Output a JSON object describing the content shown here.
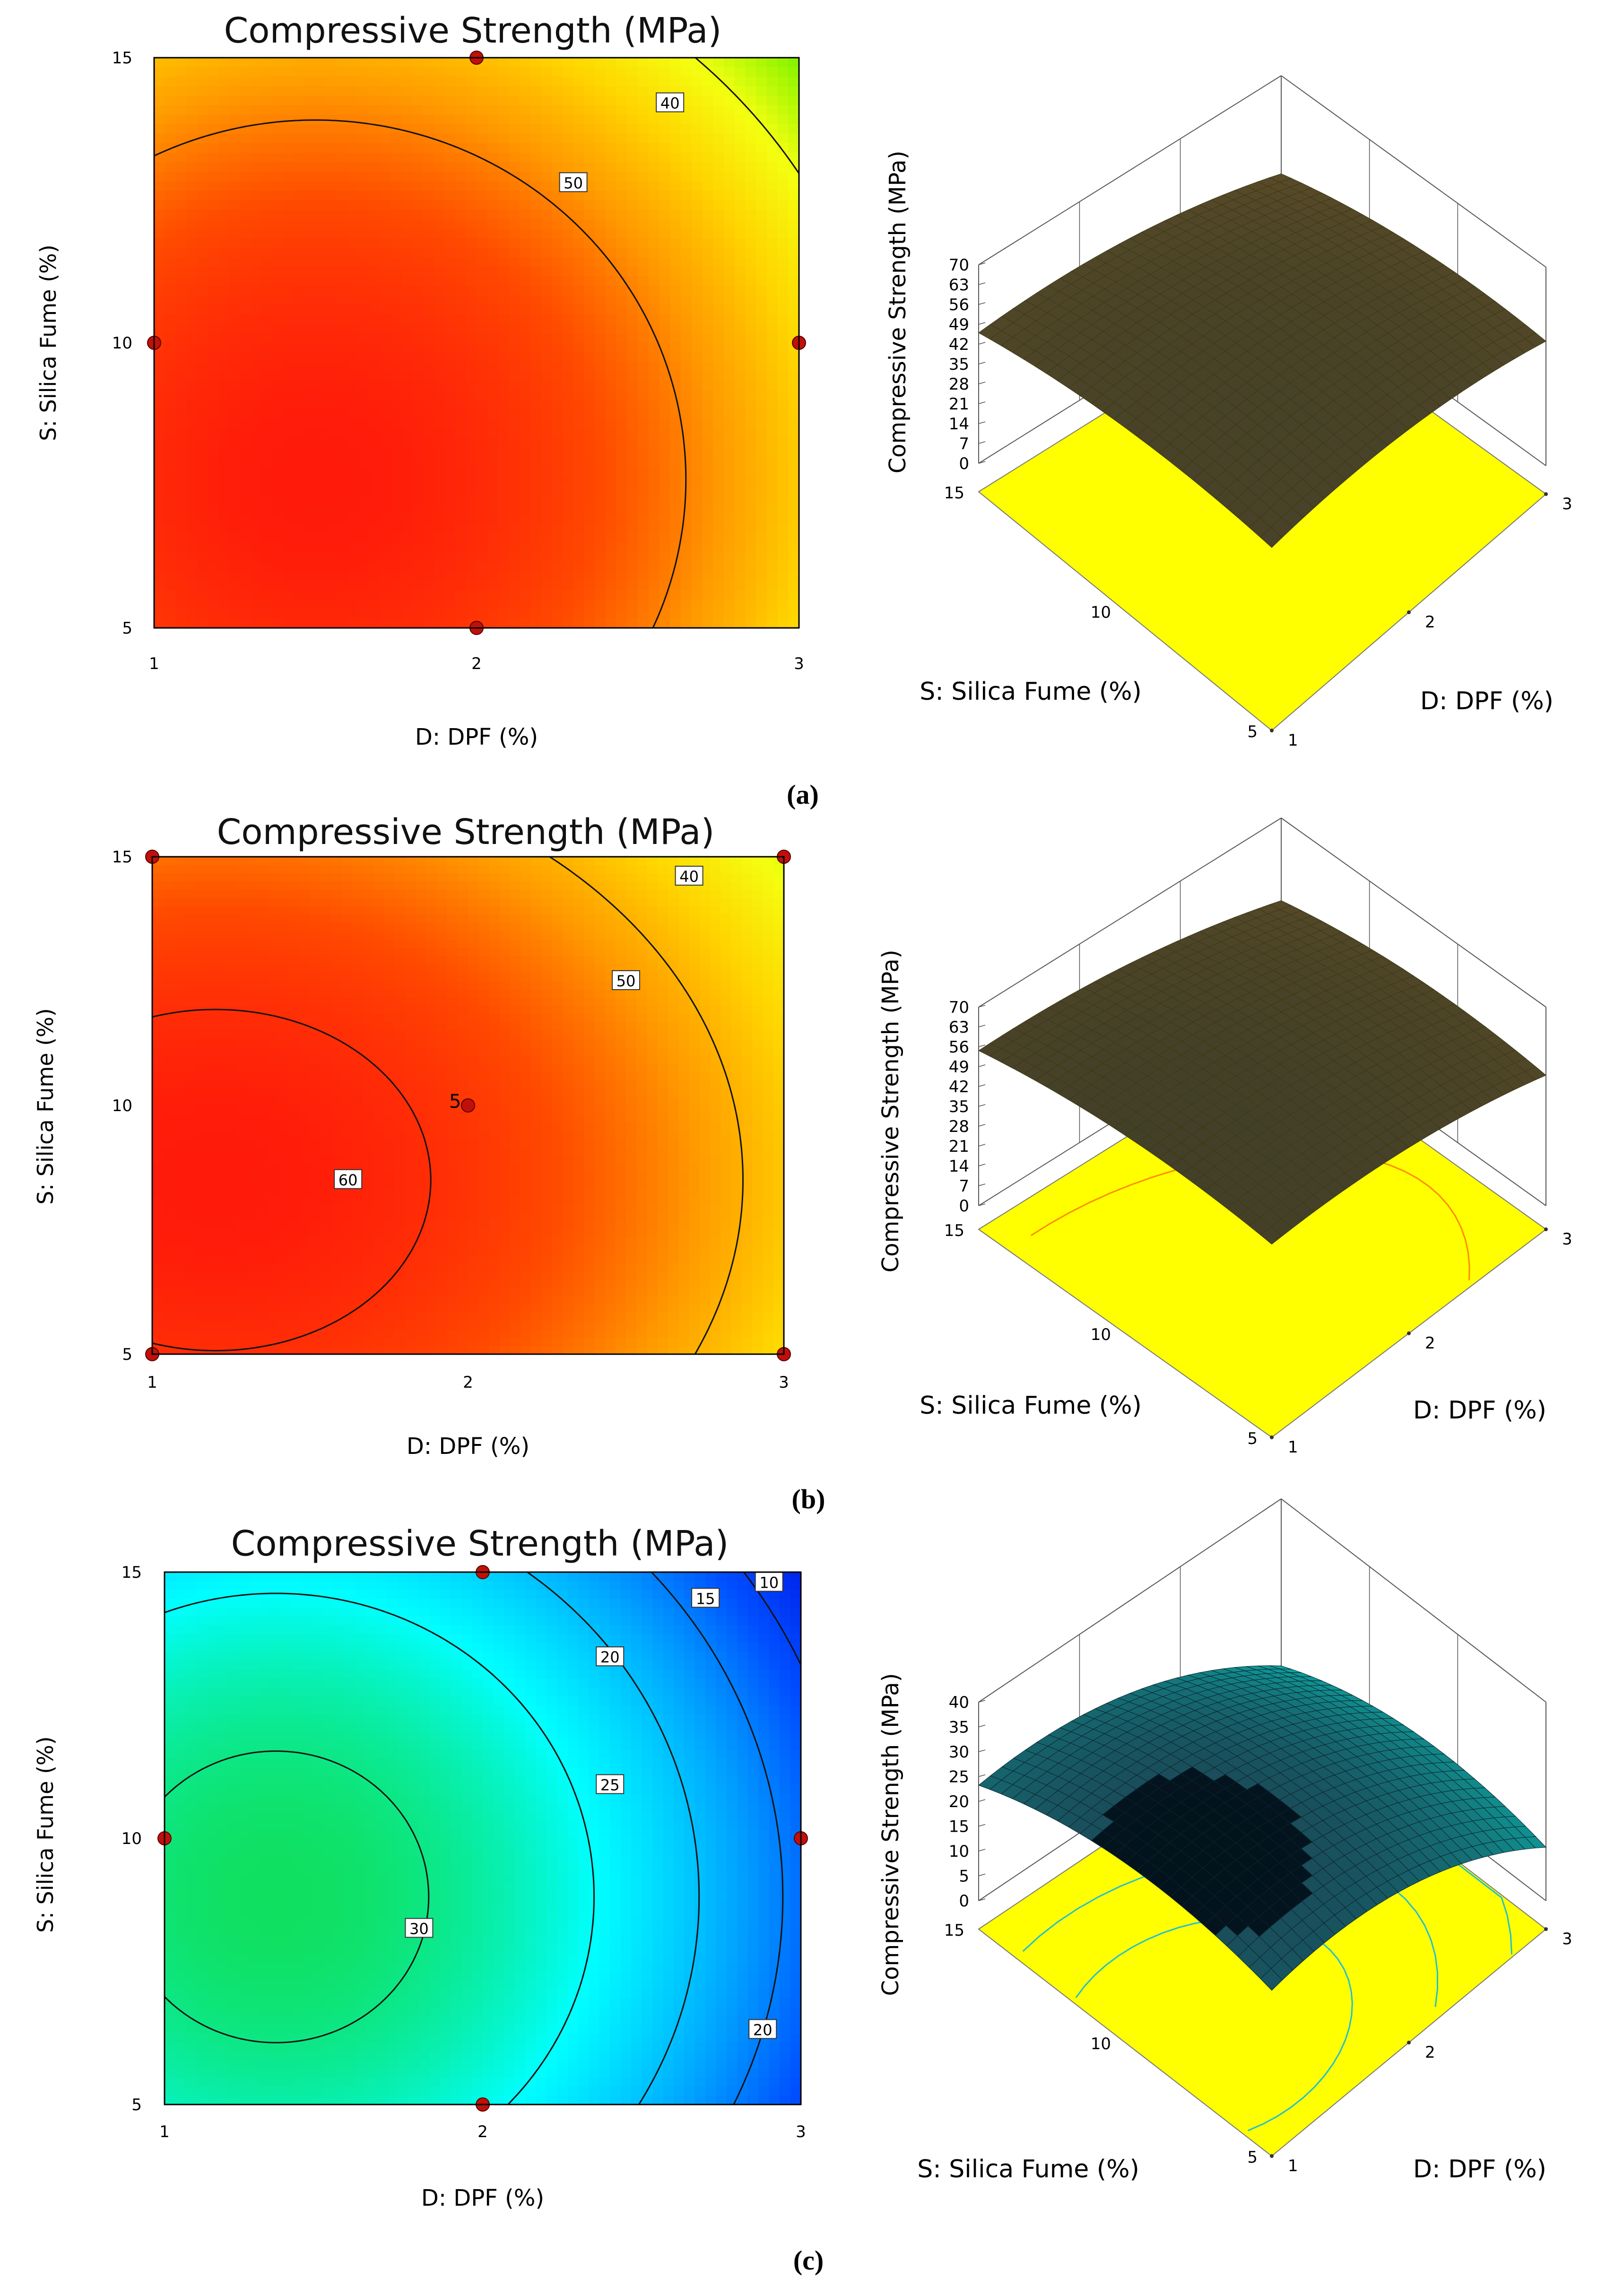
{
  "colors": {
    "rainbow": [
      "#ff1a0a",
      "#ff4a00",
      "#ff9a00",
      "#ffd400",
      "#f4ff10",
      "#90f400",
      "#20e000"
    ],
    "cool": [
      "#10e060",
      "#00ffff",
      "#00aaff",
      "#0050ff",
      "#0018e8"
    ],
    "floor": "#ffff00",
    "design_point": "#c0100a"
  },
  "panels": [
    {
      "caption": "(a)",
      "palette": "warm",
      "chart_data": [
        {
          "type": "heatmap",
          "subtype": "contour",
          "title": "Compressive Strength (MPa)",
          "xlabel": "D: DPF (%)",
          "ylabel": "S: Silica Fume (%)",
          "x_ticks": [
            "1",
            "2",
            "3"
          ],
          "y_ticks": [
            "5",
            "10",
            "15"
          ],
          "xlim": [
            1,
            3
          ],
          "ylim": [
            5,
            15
          ],
          "model": {
            "b0": 57.0,
            "x0": 1.5,
            "y0": 7.6,
            "ax": 5.3,
            "ay": 0.176
          },
          "contours": [
            {
              "level": 50,
              "label": "50",
              "label_at": [
                2.3,
                12.8
              ]
            },
            {
              "level": 40,
              "label": "40",
              "label_at": [
                2.6,
                14.2
              ]
            }
          ],
          "design_points": [
            [
              1,
              10
            ],
            [
              2,
              15
            ],
            [
              3,
              10
            ],
            [
              2,
              5
            ]
          ]
        },
        {
          "type": "surface",
          "zlabel": "Compressive Strength (MPa)",
          "xlabel": "D: DPF (%)",
          "ylabel": "S: Silica Fume (%)",
          "z_ticks": [
            "0",
            "7",
            "14",
            "21",
            "28",
            "35",
            "42",
            "49",
            "56",
            "63",
            "70"
          ],
          "zlim": [
            0,
            70
          ],
          "x_ticks": [
            "1",
            "2",
            "3"
          ],
          "y_ticks": [
            "5",
            "10",
            "15"
          ]
        }
      ]
    },
    {
      "caption": "(b)",
      "palette": "warm",
      "chart_data": [
        {
          "type": "heatmap",
          "subtype": "contour",
          "title": "Compressive Strength (MPa)",
          "xlabel": "D: DPF (%)",
          "ylabel": "S: Silica Fume (%)",
          "x_ticks": [
            "1",
            "2",
            "3"
          ],
          "y_ticks": [
            "5",
            "10",
            "15"
          ],
          "xlim": [
            1,
            3
          ],
          "ylim": [
            5,
            15
          ],
          "model": {
            "b0": 62.0,
            "x0": 1.2,
            "y0": 8.5,
            "ax": 4.3,
            "ay": 0.17
          },
          "contours": [
            {
              "level": 60,
              "label": "60",
              "label_at": [
                1.62,
                8.5
              ]
            },
            {
              "level": 50,
              "label": "50",
              "label_at": [
                2.5,
                12.5
              ]
            },
            {
              "level": 40,
              "label": "40",
              "label_at": [
                2.7,
                14.6
              ]
            }
          ],
          "point_label": "5",
          "design_points": [
            [
              1,
              15
            ],
            [
              3,
              15
            ],
            [
              1,
              5
            ],
            [
              3,
              5
            ],
            [
              2,
              10
            ]
          ]
        },
        {
          "type": "surface",
          "zlabel": "Compressive Strength (MPa)",
          "xlabel": "D: DPF (%)",
          "ylabel": "S: Silica Fume (%)",
          "z_ticks": [
            "0",
            "7",
            "14",
            "21",
            "28",
            "35",
            "42",
            "49",
            "56",
            "63",
            "70"
          ],
          "zlim": [
            0,
            70
          ],
          "x_ticks": [
            "1",
            "2",
            "3"
          ],
          "y_ticks": [
            "5",
            "10",
            "15"
          ]
        }
      ]
    },
    {
      "caption": "(c)",
      "palette": "cool",
      "chart_data": [
        {
          "type": "heatmap",
          "subtype": "contour",
          "title": "Compressive Strength (MPa)",
          "xlabel": "D: DPF (%)",
          "ylabel": "S: Silica Fume (%)",
          "x_ticks": [
            "1",
            "2",
            "3"
          ],
          "y_ticks": [
            "5",
            "10",
            "15"
          ],
          "xlim": [
            1,
            3
          ],
          "ylim": [
            5,
            15
          ],
          "model": {
            "b0": 31.5,
            "x0": 1.35,
            "y0": 8.9,
            "ax": 6.5,
            "ay": 0.2
          },
          "contours": [
            {
              "level": 30,
              "label": "30",
              "label_at": [
                1.8,
                8.3
              ]
            },
            {
              "level": 25,
              "label": "25",
              "label_at": [
                2.4,
                11.0
              ]
            },
            {
              "level": 20,
              "label": "20",
              "label_at": [
                2.4,
                13.4
              ]
            },
            {
              "level": 15,
              "label": "15",
              "label_at": [
                2.7,
                14.5
              ]
            },
            {
              "level": 10,
              "label": "10",
              "label_at": [
                2.9,
                14.8
              ]
            }
          ],
          "extra_labels": [
            {
              "label": "20",
              "at": [
                2.88,
                6.4
              ]
            }
          ],
          "design_points": [
            [
              1,
              10
            ],
            [
              2,
              15
            ],
            [
              3,
              10
            ],
            [
              2,
              5
            ]
          ]
        },
        {
          "type": "surface",
          "zlabel": "Compressive Strength (MPa)",
          "xlabel": "D: DPF (%)",
          "ylabel": "S: Silica Fume (%)",
          "z_ticks": [
            "0",
            "5",
            "10",
            "15",
            "20",
            "25",
            "30",
            "35",
            "40"
          ],
          "zlim": [
            0,
            40
          ],
          "x_ticks": [
            "1",
            "2",
            "3"
          ],
          "y_ticks": [
            "5",
            "10",
            "15"
          ]
        }
      ]
    }
  ]
}
